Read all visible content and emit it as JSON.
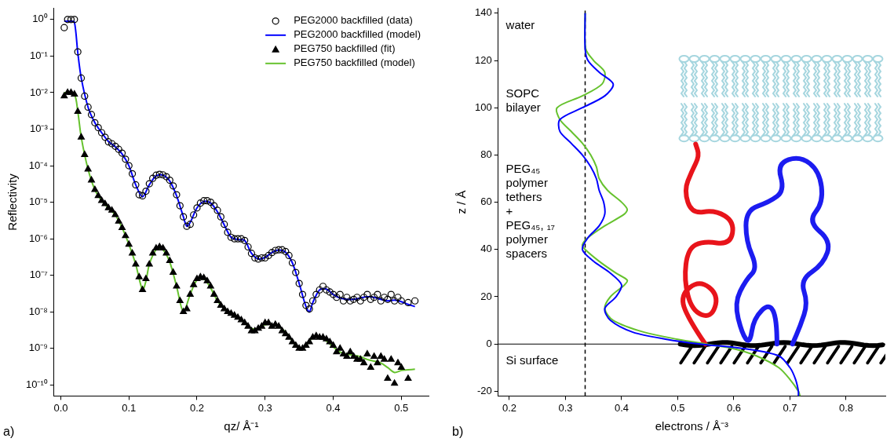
{
  "chart_data": [
    {
      "type": "line",
      "panel": "a)",
      "xlabel": "qz/ Å⁻¹",
      "ylabel": "Reflectivity",
      "log": "y",
      "grid": false,
      "legend": "top right",
      "xlim": [
        -0.01,
        0.54
      ],
      "xticks": [
        {
          "value": 0,
          "label": "0.0"
        },
        0.1,
        0.2,
        0.3,
        0.4,
        0.5
      ],
      "ylim": [
        5e-11,
        2
      ],
      "yticks": [
        {
          "value": 1,
          "label": "10⁰"
        },
        {
          "value": 0.1,
          "label": "10⁻¹"
        },
        {
          "value": 0.01,
          "label": "10⁻²"
        },
        {
          "value": 0.001,
          "label": "10⁻³"
        },
        {
          "value": 0.0001,
          "label": "10⁻⁴"
        },
        {
          "value": 1e-05,
          "label": "10⁻⁵"
        },
        {
          "value": 1e-06,
          "label": "10⁻⁶"
        },
        {
          "value": 1e-07,
          "label": "10⁻⁷"
        },
        {
          "value": 1e-08,
          "label": "10⁻⁸"
        },
        {
          "value": 1e-09,
          "label": "10⁻⁹"
        },
        {
          "value": 1e-10,
          "label": "10⁻¹⁰"
        }
      ],
      "series": [
        {
          "name": "PEG2000 backfilled (data)",
          "type": "scatter",
          "marker": "open_circle",
          "color": "#000000",
          "x": [
            0.005,
            0.01,
            0.015,
            0.02,
            0.025,
            0.03,
            0.035,
            0.04,
            0.045,
            0.05,
            0.055,
            0.06,
            0.065,
            0.07,
            0.075,
            0.08,
            0.085,
            0.09,
            0.095,
            0.1,
            0.105,
            0.11,
            0.115,
            0.12,
            0.125,
            0.13,
            0.135,
            0.14,
            0.145,
            0.15,
            0.155,
            0.16,
            0.165,
            0.17,
            0.175,
            0.18,
            0.185,
            0.19,
            0.195,
            0.2,
            0.205,
            0.21,
            0.215,
            0.22,
            0.225,
            0.23,
            0.235,
            0.24,
            0.245,
            0.25,
            0.255,
            0.26,
            0.265,
            0.27,
            0.275,
            0.28,
            0.285,
            0.29,
            0.295,
            0.3,
            0.305,
            0.31,
            0.315,
            0.32,
            0.325,
            0.33,
            0.335,
            0.34,
            0.345,
            0.35,
            0.355,
            0.36,
            0.365,
            0.37,
            0.375,
            0.38,
            0.385,
            0.39,
            0.395,
            0.4,
            0.405,
            0.41,
            0.415,
            0.42,
            0.425,
            0.43,
            0.435,
            0.44,
            0.445,
            0.45,
            0.455,
            0.46,
            0.465,
            0.47,
            0.475,
            0.48,
            0.485,
            0.49,
            0.495,
            0.5,
            0.51,
            0.52
          ],
          "values": [
            0.6,
            1.0,
            1.0,
            1.0,
            0.13,
            0.025,
            0.008,
            0.004,
            0.0025,
            0.0015,
            0.0011,
            0.0008,
            0.0006,
            0.00045,
            0.0004,
            0.00034,
            0.00028,
            0.00022,
            0.00015,
            0.0001,
            6e-05,
            3e-05,
            1.6e-05,
            1.5e-05,
            2e-05,
            3.2e-05,
            4.5e-05,
            5.5e-05,
            5.8e-05,
            5.6e-05,
            5e-05,
            4e-05,
            2.8e-05,
            1.6e-05,
            8e-06,
            4e-06,
            2.2e-06,
            2.5e-06,
            4.5e-06,
            7e-06,
            9.5e-06,
            1.1e-05,
            1.1e-05,
            1e-05,
            8e-06,
            6e-06,
            4e-06,
            2.5e-06,
            1.5e-06,
            1.1e-06,
            1e-06,
            1e-06,
            1e-06,
            9e-07,
            6e-07,
            4e-07,
            3e-07,
            2.8e-07,
            3e-07,
            3e-07,
            3.5e-07,
            4.2e-07,
            4.8e-07,
            5e-07,
            5e-07,
            4.5e-07,
            3.5e-07,
            2.2e-07,
            1.2e-07,
            6e-08,
            3e-08,
            1.5e-08,
            1.2e-08,
            2e-08,
            3e-08,
            4e-08,
            5e-08,
            4e-08,
            3.5e-08,
            3e-08,
            2.5e-08,
            3e-08,
            2e-08,
            2.5e-08,
            2e-08,
            2.2e-08,
            2.5e-08,
            2e-08,
            2.5e-08,
            3e-08,
            2.2e-08,
            2.5e-08,
            3e-08,
            2e-08,
            2.5e-08,
            2.2e-08,
            3e-08,
            2e-08,
            2.5e-08,
            2e-08,
            1.8e-08,
            2e-08
          ]
        },
        {
          "name": "PEG2000 backfilled (model)",
          "type": "line",
          "line_style": "solid",
          "color": "#0000ff",
          "x": [
            0.005,
            0.01,
            0.015,
            0.02,
            0.025,
            0.03,
            0.04,
            0.05,
            0.06,
            0.07,
            0.08,
            0.09,
            0.1,
            0.11,
            0.12,
            0.13,
            0.14,
            0.15,
            0.16,
            0.17,
            0.18,
            0.185,
            0.19,
            0.2,
            0.21,
            0.22,
            0.23,
            0.24,
            0.25,
            0.26,
            0.27,
            0.28,
            0.29,
            0.3,
            0.31,
            0.32,
            0.33,
            0.34,
            0.35,
            0.36,
            0.365,
            0.37,
            0.38,
            0.39,
            0.4,
            0.41,
            0.42,
            0.43,
            0.44,
            0.45,
            0.46,
            0.47,
            0.48,
            0.49,
            0.5,
            0.51,
            0.52
          ],
          "values": [
            0.9,
            0.9,
            0.9,
            0.85,
            0.12,
            0.025,
            0.004,
            0.0015,
            0.0008,
            0.00046,
            0.00033,
            0.00021,
            0.0001,
            3e-05,
            1.4e-05,
            3e-05,
            5.3e-05,
            5.5e-05,
            3.8e-05,
            1.5e-05,
            4e-06,
            2.2e-06,
            2.8e-06,
            7e-06,
            1.05e-05,
            9.5e-06,
            5.5e-06,
            2.4e-06,
            1.1e-06,
            9.5e-07,
            9e-07,
            4e-07,
            2.8e-07,
            3.1e-07,
            4.2e-07,
            4.9e-07,
            4.3e-07,
            2.2e-07,
            6e-08,
            1.4e-08,
            1e-08,
            1.8e-08,
            4e-08,
            4.2e-08,
            3e-08,
            2.4e-08,
            2.2e-08,
            2.2e-08,
            2.4e-08,
            2.6e-08,
            2.5e-08,
            2.2e-08,
            2e-08,
            2.1e-08,
            1.9e-08,
            1.6e-08,
            1.4e-08
          ]
        },
        {
          "name": "PEG750 backfilled (fit)",
          "type": "scatter",
          "marker": "triangle",
          "color": "#000000",
          "x": [
            0.005,
            0.01,
            0.015,
            0.02,
            0.025,
            0.03,
            0.035,
            0.04,
            0.045,
            0.05,
            0.055,
            0.06,
            0.065,
            0.07,
            0.075,
            0.08,
            0.085,
            0.09,
            0.095,
            0.1,
            0.105,
            0.11,
            0.115,
            0.12,
            0.125,
            0.13,
            0.135,
            0.14,
            0.145,
            0.15,
            0.155,
            0.16,
            0.165,
            0.17,
            0.175,
            0.18,
            0.185,
            0.19,
            0.195,
            0.2,
            0.205,
            0.21,
            0.215,
            0.22,
            0.225,
            0.23,
            0.235,
            0.24,
            0.245,
            0.25,
            0.255,
            0.26,
            0.265,
            0.27,
            0.275,
            0.28,
            0.285,
            0.29,
            0.295,
            0.3,
            0.305,
            0.31,
            0.315,
            0.32,
            0.325,
            0.33,
            0.335,
            0.34,
            0.345,
            0.35,
            0.355,
            0.36,
            0.365,
            0.37,
            0.375,
            0.38,
            0.385,
            0.39,
            0.395,
            0.4,
            0.405,
            0.41,
            0.415,
            0.42,
            0.425,
            0.43,
            0.435,
            0.44,
            0.445,
            0.45,
            0.455,
            0.46,
            0.465,
            0.47,
            0.475,
            0.48,
            0.485,
            0.49,
            0.495,
            0.5,
            0.51
          ],
          "values": [
            0.008,
            0.01,
            0.01,
            0.009,
            0.003,
            0.0006,
            0.0002,
            8e-05,
            4e-05,
            2.2e-05,
            1.5e-05,
            1.1e-05,
            9e-06,
            7e-06,
            6e-06,
            4.5e-06,
            3e-06,
            2e-06,
            1.2e-06,
            7e-07,
            4e-07,
            2e-07,
            9e-08,
            4e-08,
            8e-08,
            2e-07,
            4e-07,
            5.5e-07,
            6e-07,
            5.5e-07,
            4e-07,
            2.5e-07,
            1.2e-07,
            5e-08,
            2e-08,
            1e-08,
            1.2e-08,
            3e-08,
            5.5e-08,
            8e-08,
            9e-08,
            8.5e-08,
            7e-08,
            5e-08,
            3e-08,
            2e-08,
            1.5e-08,
            1.2e-08,
            1e-08,
            9e-09,
            8e-09,
            7e-09,
            6e-09,
            5e-09,
            4e-09,
            3e-09,
            3e-09,
            3.5e-09,
            4e-09,
            5e-09,
            5e-09,
            4e-09,
            4.5e-09,
            4e-09,
            3e-09,
            2.5e-09,
            2e-09,
            1.5e-09,
            1.2e-09,
            1e-09,
            1e-09,
            1.2e-09,
            1.5e-09,
            2e-09,
            2.2e-09,
            2e-09,
            2e-09,
            1.8e-09,
            1.5e-09,
            1.2e-09,
            8e-10,
            1e-09,
            7e-10,
            6e-10,
            8e-10,
            6e-10,
            5e-10,
            5e-10,
            4e-10,
            7e-10,
            3e-10,
            6e-10,
            4e-10,
            6e-10,
            5e-10,
            1.5e-10,
            5e-10,
            1.1e-10,
            4e-10,
            3e-10,
            1.5e-10
          ]
        },
        {
          "name": "PEG750 backfilled (model)",
          "type": "line",
          "line_style": "solid",
          "color": "#66c22e",
          "x": [
            0.005,
            0.01,
            0.02,
            0.025,
            0.03,
            0.04,
            0.05,
            0.06,
            0.07,
            0.08,
            0.09,
            0.1,
            0.11,
            0.12,
            0.125,
            0.13,
            0.14,
            0.15,
            0.16,
            0.17,
            0.18,
            0.19,
            0.2,
            0.21,
            0.22,
            0.23,
            0.24,
            0.25,
            0.26,
            0.27,
            0.28,
            0.29,
            0.3,
            0.31,
            0.32,
            0.33,
            0.34,
            0.35,
            0.36,
            0.37,
            0.38,
            0.39,
            0.4,
            0.41,
            0.42,
            0.43,
            0.44,
            0.45,
            0.46,
            0.47,
            0.48,
            0.49,
            0.5,
            0.51,
            0.52
          ],
          "values": [
            0.01,
            0.01,
            0.009,
            0.003,
            0.0006,
            8e-05,
            2.2e-05,
            1.1e-05,
            7e-06,
            4.5e-06,
            2e-06,
            7e-07,
            2e-07,
            4e-08,
            7e-08,
            2e-07,
            5e-07,
            5e-07,
            2.3e-07,
            5e-08,
            1e-08,
            3e-08,
            7.5e-08,
            8e-08,
            4.5e-08,
            2e-08,
            1.2e-08,
            9e-09,
            7e-09,
            5e-09,
            3.5e-09,
            3.5e-09,
            4.5e-09,
            4.5e-09,
            4e-09,
            2.8e-09,
            1.6e-09,
            1e-09,
            1.2e-09,
            2e-09,
            2e-09,
            1.6e-09,
            1.1e-09,
            8e-10,
            7e-10,
            6.5e-10,
            6e-10,
            5e-10,
            4.5e-10,
            4e-10,
            3e-10,
            2.2e-10,
            2.5e-10,
            2.6e-10,
            2.7e-10
          ]
        }
      ]
    },
    {
      "type": "line",
      "panel": "b)",
      "xlabel": "electrons / Å⁻³",
      "ylabel": "z / Å",
      "grid": false,
      "xlim": [
        0.18,
        0.87
      ],
      "xticks": [
        0.2,
        0.3,
        0.4,
        0.5,
        0.6,
        0.7,
        0.8
      ],
      "ylim": [
        -22,
        142
      ],
      "yticks": [
        -20,
        0,
        20,
        40,
        60,
        80,
        100,
        120,
        140
      ],
      "annotations": [
        {
          "text": [
            "water"
          ]
        },
        {
          "text": [
            "SOPC",
            "bilayer"
          ]
        },
        {
          "text": [
            "PEG₄₅",
            "polymer",
            "tethers",
            "+",
            "PEG₄₅, ₁₇",
            "polymer",
            "spacers"
          ]
        },
        {
          "text": [
            "Si surface"
          ]
        }
      ],
      "series": [
        {
          "type": "line",
          "line_style": "solid",
          "color": "#0000ff",
          "x": [
            0.335,
            0.335,
            0.34,
            0.36,
            0.385,
            0.37,
            0.33,
            0.29,
            0.29,
            0.31,
            0.33,
            0.345,
            0.355,
            0.36,
            0.368,
            0.37,
            0.36,
            0.34,
            0.33,
            0.35,
            0.38,
            0.4,
            0.39,
            0.37,
            0.38,
            0.42,
            0.48,
            0.54,
            0.62,
            0.68,
            0.7,
            0.71,
            0.715,
            0.715
          ],
          "y": [
            140,
            125,
            120,
            115,
            110,
            105,
            100,
            95,
            90,
            85,
            80,
            75,
            70,
            65,
            60,
            55,
            50,
            45,
            40,
            35,
            30,
            25,
            20,
            15,
            10,
            5,
            2,
            0,
            -2,
            -5,
            -10,
            -15,
            -20,
            -22
          ]
        },
        {
          "type": "line",
          "line_style": "solid",
          "color": "#66c22e",
          "x": [
            0.335,
            0.336,
            0.35,
            0.37,
            0.365,
            0.33,
            0.285,
            0.29,
            0.31,
            0.33,
            0.345,
            0.355,
            0.36,
            0.375,
            0.4,
            0.41,
            0.405,
            0.37,
            0.34,
            0.33,
            0.335,
            0.36,
            0.39,
            0.41,
            0.405,
            0.38,
            0.37,
            0.385,
            0.44,
            0.5,
            0.55,
            0.6,
            0.64,
            0.68,
            0.7,
            0.715,
            0.718
          ],
          "y": [
            140,
            125,
            120,
            115,
            110,
            105,
            100,
            95,
            90,
            85,
            80,
            75,
            70,
            65,
            60,
            57,
            55,
            50,
            45,
            42,
            40,
            35,
            30,
            27,
            25,
            20,
            15,
            10,
            5,
            2,
            0,
            -2,
            -5,
            -10,
            -15,
            -20,
            -22
          ]
        },
        {
          "type": "line",
          "line_style": "dashed",
          "color": "#000000",
          "x": [
            0.335,
            0.335
          ],
          "y": [
            -22,
            142
          ]
        }
      ]
    }
  ]
}
